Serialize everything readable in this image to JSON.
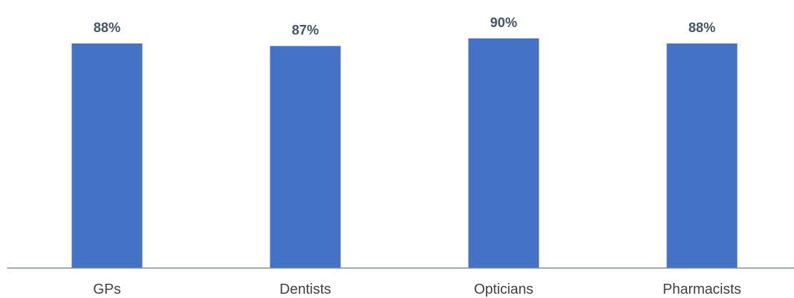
{
  "chart_data": {
    "type": "bar",
    "categories": [
      "GPs",
      "Dentists",
      "Opticians",
      "Pharmacists"
    ],
    "values": [
      88,
      87,
      90,
      88
    ],
    "value_labels": [
      "88%",
      "87%",
      "90%",
      "88%"
    ],
    "title": "",
    "xlabel": "",
    "ylabel": "",
    "ylim": [
      0,
      95
    ],
    "grid": false,
    "legend": "none",
    "bar_color": "#4472c4",
    "axis_color": "#7f8c99",
    "label_color": "#44546a",
    "tick_color": "#404040"
  }
}
